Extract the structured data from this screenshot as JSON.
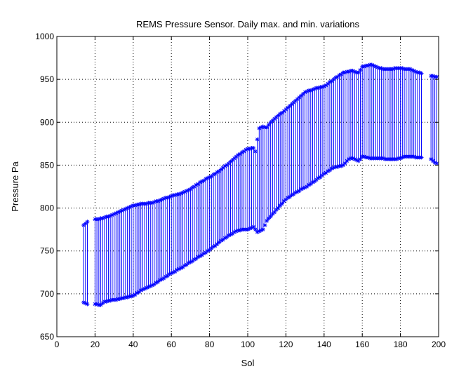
{
  "chart_data": {
    "type": "errorbar",
    "title": "REMS Pressure Sensor. Daily max. and min. variations",
    "xlabel": "Sol",
    "ylabel": "Pressure Pa",
    "xlim": [
      0,
      200
    ],
    "ylim": [
      650,
      1000
    ],
    "xticks": [
      0,
      20,
      40,
      60,
      80,
      100,
      120,
      140,
      160,
      180,
      200
    ],
    "yticks": [
      650,
      700,
      750,
      800,
      850,
      900,
      950,
      1000
    ],
    "grid": true,
    "color": "#0000ff",
    "marker": "*",
    "x": [
      14,
      15,
      16,
      20,
      21,
      22,
      23,
      24,
      25,
      26,
      27,
      28,
      29,
      30,
      31,
      32,
      33,
      34,
      35,
      36,
      37,
      38,
      39,
      40,
      41,
      42,
      43,
      44,
      45,
      46,
      47,
      48,
      49,
      50,
      51,
      52,
      53,
      54,
      55,
      56,
      57,
      58,
      59,
      60,
      61,
      62,
      63,
      64,
      65,
      66,
      67,
      68,
      69,
      70,
      71,
      72,
      73,
      74,
      75,
      76,
      77,
      78,
      79,
      80,
      81,
      82,
      83,
      84,
      85,
      86,
      87,
      88,
      89,
      90,
      91,
      92,
      93,
      94,
      95,
      96,
      97,
      98,
      99,
      100,
      101,
      102,
      103,
      104,
      105,
      106,
      107,
      108,
      109,
      110,
      111,
      112,
      113,
      114,
      115,
      116,
      117,
      118,
      119,
      120,
      121,
      122,
      123,
      124,
      125,
      126,
      127,
      128,
      129,
      130,
      131,
      132,
      133,
      134,
      135,
      136,
      137,
      138,
      139,
      140,
      141,
      142,
      143,
      144,
      145,
      146,
      147,
      148,
      149,
      150,
      151,
      152,
      153,
      154,
      155,
      156,
      157,
      158,
      159,
      160,
      161,
      162,
      163,
      164,
      165,
      166,
      167,
      168,
      169,
      170,
      171,
      172,
      173,
      174,
      175,
      176,
      177,
      178,
      179,
      180,
      181,
      182,
      183,
      184,
      185,
      186,
      187,
      188,
      189,
      190,
      191,
      196,
      197,
      198,
      199
    ],
    "max": [
      780,
      782,
      784,
      787,
      787,
      787,
      788,
      788,
      789,
      790,
      790,
      791,
      792,
      793,
      794,
      795,
      796,
      797,
      798,
      799,
      800,
      801,
      802,
      803,
      803,
      804,
      804,
      805,
      805,
      805,
      805,
      806,
      806,
      806,
      807,
      808,
      808,
      809,
      810,
      811,
      812,
      812,
      813,
      814,
      815,
      815,
      816,
      816,
      817,
      818,
      819,
      820,
      821,
      822,
      824,
      825,
      827,
      828,
      830,
      831,
      832,
      834,
      835,
      836,
      837,
      839,
      840,
      842,
      843,
      845,
      847,
      849,
      850,
      852,
      854,
      856,
      858,
      860,
      862,
      863,
      865,
      866,
      868,
      869,
      869,
      870,
      870,
      866,
      880,
      893,
      894,
      895,
      894,
      894,
      897,
      900,
      902,
      904,
      906,
      908,
      910,
      911,
      913,
      915,
      917,
      919,
      921,
      923,
      925,
      927,
      929,
      931,
      933,
      935,
      936,
      937,
      937,
      938,
      939,
      940,
      940,
      941,
      941,
      942,
      943,
      945,
      947,
      948,
      950,
      952,
      953,
      955,
      956,
      958,
      958,
      959,
      959,
      960,
      960,
      959,
      958,
      958,
      961,
      965,
      965,
      966,
      966,
      967,
      967,
      966,
      965,
      964,
      963,
      963,
      962,
      962,
      962,
      962,
      962,
      962,
      963,
      963,
      963,
      963,
      963,
      962,
      962,
      962,
      962,
      961,
      960,
      959,
      958,
      958,
      957,
      954,
      954,
      953,
      953
    ],
    "min": [
      690,
      689,
      688,
      688,
      688,
      687,
      687,
      689,
      691,
      691,
      692,
      692,
      693,
      693,
      693,
      694,
      694,
      695,
      695,
      696,
      696,
      697,
      697,
      698,
      699,
      701,
      702,
      704,
      705,
      706,
      707,
      708,
      709,
      710,
      711,
      713,
      714,
      716,
      717,
      718,
      720,
      721,
      723,
      724,
      725,
      726,
      728,
      729,
      730,
      731,
      733,
      734,
      736,
      737,
      738,
      740,
      741,
      743,
      744,
      745,
      747,
      748,
      750,
      751,
      753,
      755,
      756,
      758,
      760,
      762,
      763,
      765,
      766,
      768,
      769,
      770,
      772,
      773,
      774,
      774,
      775,
      775,
      775,
      775,
      776,
      777,
      778,
      775,
      772,
      773,
      774,
      775,
      780,
      785,
      788,
      790,
      793,
      795,
      798,
      800,
      803,
      805,
      808,
      810,
      812,
      813,
      815,
      816,
      818,
      819,
      820,
      822,
      823,
      824,
      825,
      827,
      828,
      830,
      831,
      833,
      835,
      836,
      838,
      840,
      841,
      843,
      844,
      846,
      847,
      848,
      848,
      849,
      849,
      850,
      852,
      855,
      857,
      858,
      858,
      857,
      856,
      855,
      857,
      860,
      860,
      859,
      859,
      858,
      858,
      858,
      858,
      858,
      858,
      858,
      858,
      857,
      857,
      857,
      857,
      857,
      857,
      857,
      858,
      858,
      859,
      860,
      860,
      860,
      860,
      860,
      860,
      859,
      859,
      859,
      859,
      857,
      855,
      853,
      852
    ]
  }
}
